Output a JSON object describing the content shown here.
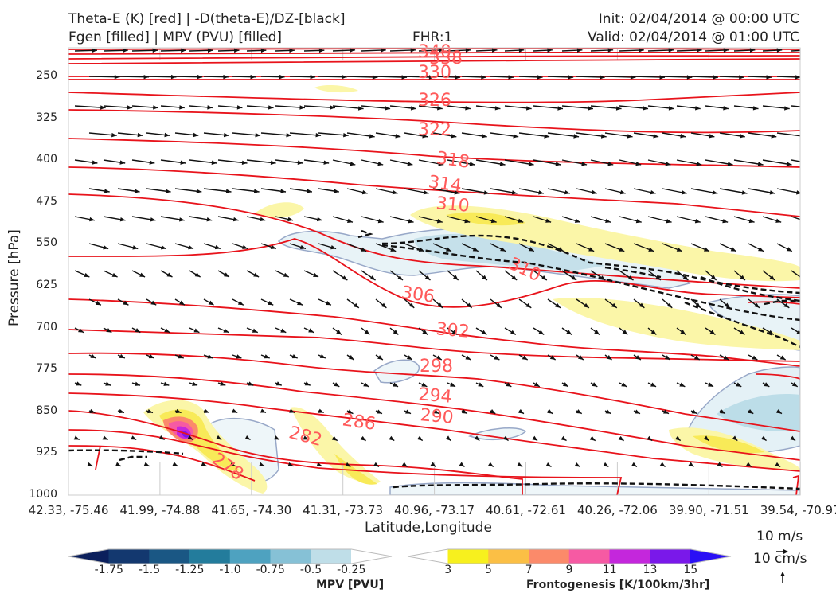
{
  "header": {
    "left_line1": "Theta-E (K) [red] | -D(theta-E)/DZ-[black]",
    "left_line2": "Fgen [filled] | MPV (PVU) [filled]",
    "center": "FHR:1",
    "right_line1": "Init: 02/04/2014 @ 00:00 UTC",
    "right_line2": "Valid: 02/04/2014 @ 01:00 UTC"
  },
  "chart_data": {
    "type": "cross-section",
    "ylabel": "Pressure [hPa]",
    "xlabel": "Latitude,Longitude",
    "ylim": [
      1000,
      190
    ],
    "yscale": "log-pressure",
    "yticks": [
      "250",
      "325",
      "400",
      "475",
      "550",
      "625",
      "700",
      "775",
      "850",
      "925",
      "1000"
    ],
    "xticks": [
      "42.33, -75.46",
      "41.99, -74.88",
      "41.65, -74.30",
      "41.31, -73.73",
      "40.96, -73.17",
      "40.61, -72.61",
      "40.26, -72.06",
      "39.90, -71.51",
      "39.54, -70.97"
    ],
    "theta_e_labels": [
      "340",
      "338",
      "330",
      "326",
      "322",
      "318",
      "314",
      "310",
      "310",
      "306",
      "302",
      "298",
      "294",
      "290",
      "286",
      "282",
      "278"
    ],
    "mpv_colorbar": {
      "label": "MPV [PVU]",
      "ticks": [
        "-1.75",
        "-1.5",
        "-1.25",
        "-1.0",
        "-0.75",
        "-0.5",
        "-0.25"
      ],
      "colors": [
        "#0b1f5c",
        "#13386f",
        "#1a5784",
        "#237c9c",
        "#4ea2c0",
        "#86c1d6",
        "#bfdee8",
        "#ffffff"
      ]
    },
    "fgen_colorbar": {
      "label": "Frontogenesis [K/100km/3hr]",
      "ticks": [
        "3",
        "5",
        "7",
        "9",
        "11",
        "13",
        "15"
      ],
      "colors": [
        "#ffffff",
        "#f7f01e",
        "#fbbf45",
        "#fb8a6a",
        "#f65aa3",
        "#c427dc",
        "#7a18ea",
        "#2a10f5"
      ]
    }
  },
  "wind_scale": {
    "horizontal": "10 m/s",
    "vertical": "10 cm/s"
  }
}
